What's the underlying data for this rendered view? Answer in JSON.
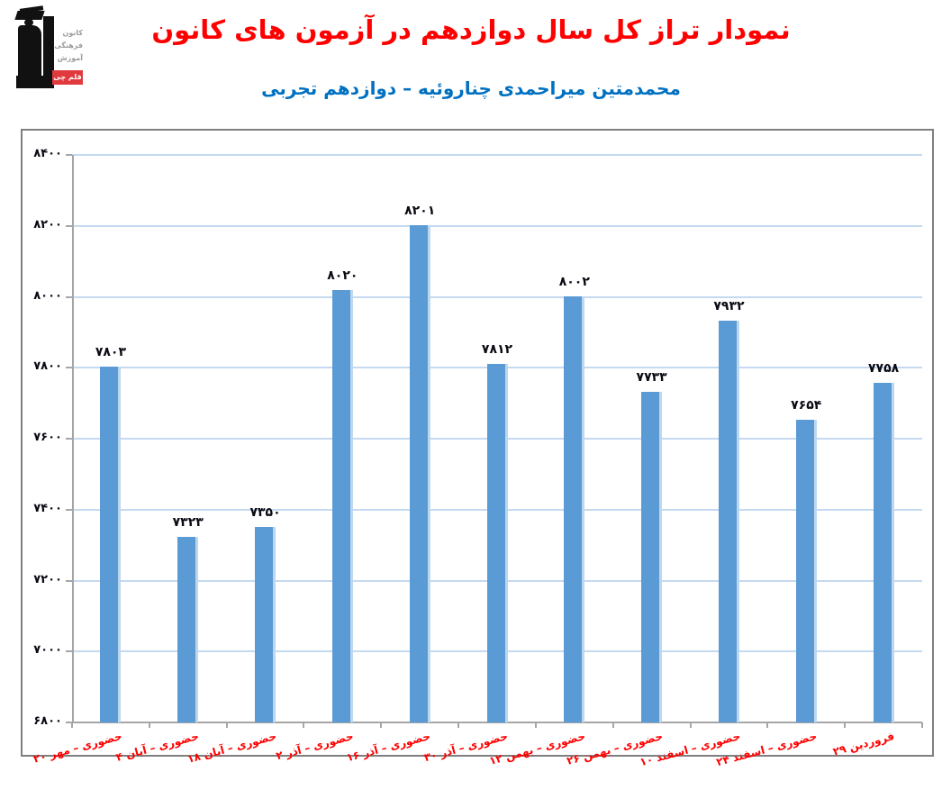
{
  "header": {
    "title": "نمودار تراز کل سال دوازدهم در آزمون های کانون",
    "subtitle": "محمدمتین میراحمدی چناروئیه – دوازدهم تجربی",
    "title_color": "#ff0000",
    "subtitle_color": "#0070c0",
    "logo": {
      "line1": "کانون",
      "line2": "فرهنگی",
      "line3": "آموزش",
      "badge": "قلم چی",
      "badge_color": "#e03a3e"
    }
  },
  "chart_data": {
    "type": "bar",
    "title": "نمودار تراز کل سال دوازدهم در آزمون های کانون",
    "xlabel": "",
    "ylabel": "",
    "categories": [
      "۲۰ مهر – حضوری",
      "۴ آبان – حضوری",
      "۱۸ آبان – حضوری",
      "۲ آذر – حضوری",
      "۱۶ آذر – حضوری",
      "۳۰ آذر – حضوری",
      "۱۲ بهمن – حضوری",
      "۲۶ بهمن – حضوری",
      "۱۰ اسفند – حضوری",
      "۲۴ اسفند – حضوری",
      "۲۹ فروردین"
    ],
    "values": [
      7803,
      7323,
      7350,
      8020,
      8201,
      7812,
      8002,
      7733,
      7932,
      7654,
      7758
    ],
    "value_labels": [
      "۷۸۰۳",
      "۷۳۲۳",
      "۷۳۵۰",
      "۸۰۲۰",
      "۸۲۰۱",
      "۷۸۱۲",
      "۸۰۰۲",
      "۷۷۳۳",
      "۷۹۳۲",
      "۷۶۵۴",
      "۷۷۵۸"
    ],
    "y_tick_values": [
      8400,
      8200,
      8000,
      7800,
      7600,
      7400,
      7200,
      7000,
      6800
    ],
    "y_tick_labels": [
      "۸۴۰۰",
      "۸۲۰۰",
      "۸۰۰۰",
      "۷۸۰۰",
      "۷۶۰۰",
      "۷۴۰۰",
      "۷۲۰۰",
      "۷۰۰۰",
      "۶۸۰۰"
    ],
    "ylim": [
      6800,
      8400
    ],
    "y_step": 200,
    "grid": true,
    "legend": "none",
    "bar_color": "#5b9bd5",
    "bar_edge_color": "#bdd7ee",
    "gridline_color": "#c5d9f1",
    "axis_color": "#a6a6a6",
    "frame_color": "#7f7f7f",
    "xlabel_color": "#ff0000",
    "value_label_color": "#0a0a14",
    "x_label_rotation_deg": -15
  }
}
